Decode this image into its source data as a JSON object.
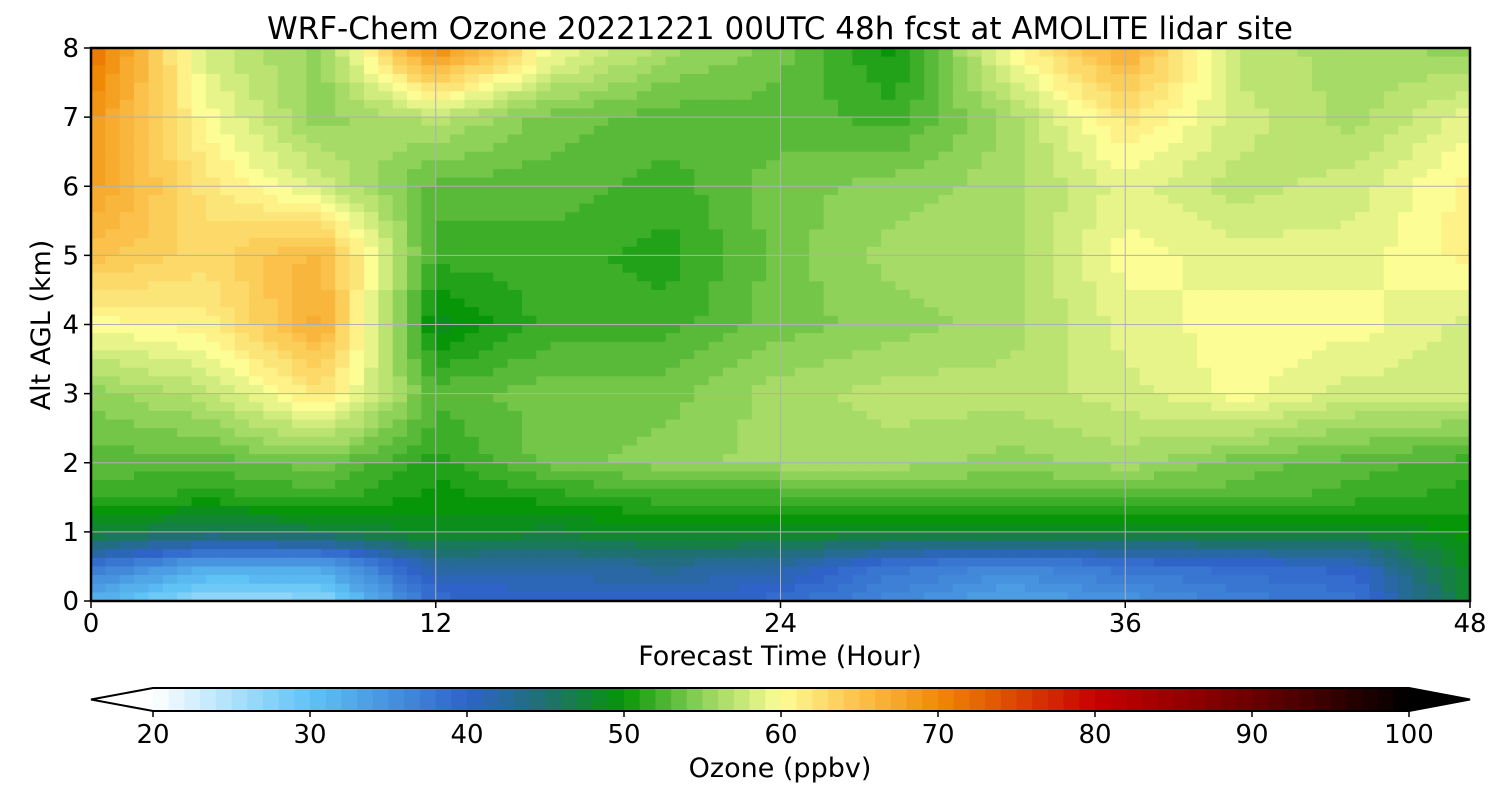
{
  "chart_data": {
    "type": "heatmap",
    "title": "WRF-Chem Ozone  20221221 00UTC 48h fcst at AMOLITE lidar site",
    "xlabel": "Forecast Time (Hour)",
    "ylabel": "Alt AGL (km)",
    "xlim": [
      0,
      48
    ],
    "ylim": [
      0,
      8
    ],
    "xticks": [
      0,
      12,
      24,
      36,
      48
    ],
    "yticks": [
      0,
      1,
      2,
      3,
      4,
      5,
      6,
      7,
      8
    ],
    "grid": true,
    "x": [
      0,
      4,
      8,
      12,
      16,
      20,
      24,
      28,
      32,
      36,
      40,
      44,
      48
    ],
    "y": [
      0,
      0.5,
      1,
      1.5,
      2,
      3,
      4,
      5,
      6,
      7,
      8
    ],
    "z": [
      [
        32,
        26,
        27,
        39,
        40,
        40,
        39,
        36,
        33,
        35,
        37,
        38,
        48
      ],
      [
        38,
        33,
        33,
        42,
        42,
        43,
        42,
        38,
        36,
        38,
        39,
        40,
        49
      ],
      [
        48,
        46,
        47,
        49,
        48,
        49,
        49,
        48,
        48,
        48,
        48,
        48,
        50
      ],
      [
        52,
        51,
        52,
        50,
        51,
        52,
        52,
        53,
        53,
        53,
        53,
        52,
        51
      ],
      [
        53,
        53,
        54,
        51,
        54,
        55,
        56,
        56,
        55,
        56,
        54,
        53,
        52
      ],
      [
        55,
        57,
        62,
        53,
        54,
        54,
        56,
        57,
        57,
        58,
        60,
        58,
        58
      ],
      [
        60,
        61,
        67,
        49,
        52,
        52,
        54,
        55,
        56,
        59,
        60,
        60,
        58
      ],
      [
        65,
        63,
        66,
        52,
        52,
        51,
        54,
        56,
        56,
        60,
        59,
        59,
        61
      ],
      [
        68,
        62,
        58,
        53,
        53,
        52,
        54,
        55,
        56,
        59,
        57,
        58,
        61
      ],
      [
        69,
        60,
        55,
        57,
        54,
        53,
        53,
        52,
        56,
        62,
        58,
        56,
        59
      ],
      [
        72,
        58,
        55,
        70,
        60,
        56,
        54,
        50,
        60,
        67,
        57,
        56,
        55
      ]
    ],
    "colorbar": {
      "label": "Ozone  (ppbv)",
      "min": 20,
      "max": 100,
      "ticks": [
        20,
        30,
        40,
        50,
        60,
        70,
        80,
        90,
        100
      ],
      "extend": "both",
      "stops": [
        {
          "v": 20,
          "c": "#ffffff"
        },
        {
          "v": 30,
          "c": "#5fc3f5"
        },
        {
          "v": 40,
          "c": "#2f63c8"
        },
        {
          "v": 45,
          "c": "#1f7070"
        },
        {
          "v": 50,
          "c": "#079607"
        },
        {
          "v": 55,
          "c": "#8fd25a"
        },
        {
          "v": 60,
          "c": "#fdfd96"
        },
        {
          "v": 65,
          "c": "#fbc14a"
        },
        {
          "v": 70,
          "c": "#f08a06"
        },
        {
          "v": 80,
          "c": "#c80000"
        },
        {
          "v": 90,
          "c": "#6b0000"
        },
        {
          "v": 100,
          "c": "#000000"
        }
      ]
    }
  }
}
